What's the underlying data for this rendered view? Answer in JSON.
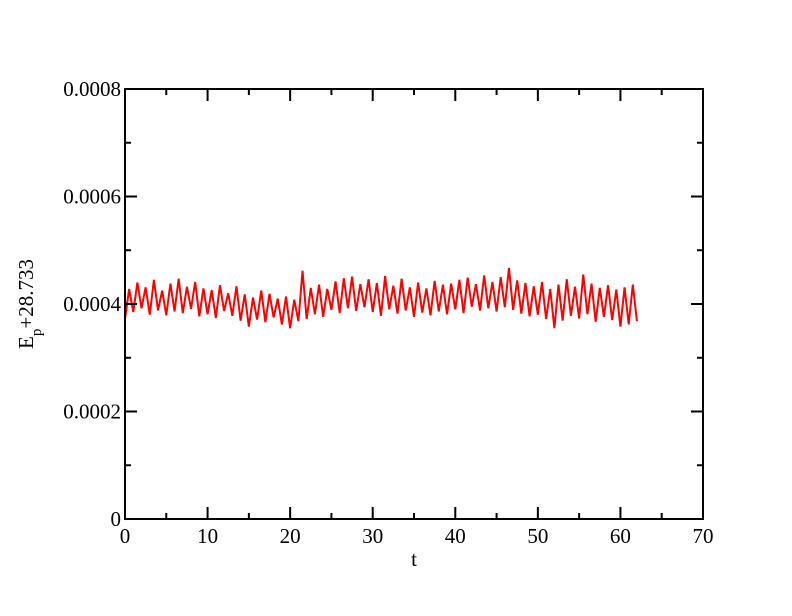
{
  "chart_data": {
    "type": "line",
    "x_label": "t",
    "y_label": {
      "base": "E",
      "sub": "p",
      "rest": "+28.733"
    },
    "xlim": [
      0,
      70
    ],
    "xticks": [
      0,
      10,
      20,
      30,
      40,
      50,
      60,
      70
    ],
    "xminorticks": [
      5,
      15,
      25,
      35,
      45,
      55,
      65
    ],
    "ylim": [
      0,
      0.0008
    ],
    "yticks": [
      0,
      0.0002,
      0.0004,
      0.0006,
      0.0008
    ],
    "yminorticks": [
      0.0001,
      0.0003,
      0.0005,
      0.0007
    ],
    "series": [
      {
        "color": "#ff0000",
        "x": [
          0,
          0.5,
          1,
          1.5,
          2,
          2.5,
          3,
          3.5,
          4,
          4.5,
          5,
          5.5,
          6,
          6.5,
          7,
          7.5,
          8,
          8.5,
          9,
          9.5,
          10,
          10.5,
          11,
          11.5,
          12,
          12.5,
          13,
          13.5,
          14,
          14.5,
          15,
          15.5,
          16,
          16.5,
          17,
          17.5,
          18,
          18.5,
          19,
          19.5,
          20,
          20.5,
          21,
          21.5,
          22,
          22.5,
          23,
          23.5,
          24,
          24.5,
          25,
          25.5,
          26,
          26.5,
          27,
          27.5,
          28,
          28.5,
          29,
          29.5,
          30,
          30.5,
          31,
          31.5,
          32,
          32.5,
          33,
          33.5,
          34,
          34.5,
          35,
          35.5,
          36,
          36.5,
          37,
          37.5,
          38,
          38.5,
          39,
          39.5,
          40,
          40.5,
          41,
          41.5,
          42,
          42.5,
          43,
          43.5,
          44,
          44.5,
          45,
          45.5,
          46,
          46.5,
          47,
          47.5,
          48,
          48.5,
          49,
          49.5,
          50,
          50.5,
          51,
          51.5,
          52,
          52.5,
          53,
          53.5,
          54,
          54.5,
          55,
          55.5,
          56,
          56.5,
          57,
          57.5,
          58,
          58.5,
          59,
          59.5,
          60,
          60.5,
          61,
          61.5,
          62
        ],
        "values": [
          0.000372,
          0.000428,
          0.000385,
          0.00044,
          0.000392,
          0.000431,
          0.00038,
          0.000445,
          0.000388,
          0.000425,
          0.000379,
          0.000438,
          0.000386,
          0.000447,
          0.000383,
          0.000432,
          0.000391,
          0.000441,
          0.000377,
          0.000429,
          0.000381,
          0.000426,
          0.000374,
          0.000435,
          0.000387,
          0.00042,
          0.000378,
          0.000433,
          0.000369,
          0.000418,
          0.000358,
          0.000412,
          0.000371,
          0.000425,
          0.000366,
          0.000419,
          0.000375,
          0.00041,
          0.000362,
          0.000414,
          0.000355,
          0.000408,
          0.000368,
          0.000462,
          0.000372,
          0.00043,
          0.000381,
          0.000436,
          0.000376,
          0.000428,
          0.000389,
          0.000442,
          0.000383,
          0.000448,
          0.000392,
          0.000451,
          0.000387,
          0.000437,
          0.000394,
          0.000446,
          0.000385,
          0.000439,
          0.000378,
          0.000452,
          0.00039,
          0.000434,
          0.000382,
          0.000447,
          0.000388,
          0.000431,
          0.000376,
          0.00044,
          0.000384,
          0.000429,
          0.000379,
          0.000443,
          0.000386,
          0.000436,
          0.000381,
          0.000438,
          0.00039,
          0.000445,
          0.000383,
          0.000449,
          0.000395,
          0.000437,
          0.000388,
          0.000453,
          0.000392,
          0.000441,
          0.000386,
          0.00045,
          0.000394,
          0.000467,
          0.000389,
          0.000444,
          0.000382,
          0.000439,
          0.000377,
          0.000433,
          0.00038,
          0.000441,
          0.000372,
          0.000428,
          0.000355,
          0.000436,
          0.000369,
          0.000446,
          0.000378,
          0.000432,
          0.000373,
          0.000455,
          0.000381,
          0.000438,
          0.000367,
          0.00043,
          0.000376,
          0.000435,
          0.00037,
          0.000427,
          0.000358,
          0.000431,
          0.000362,
          0.000436,
          0.000368
        ]
      }
    ]
  }
}
